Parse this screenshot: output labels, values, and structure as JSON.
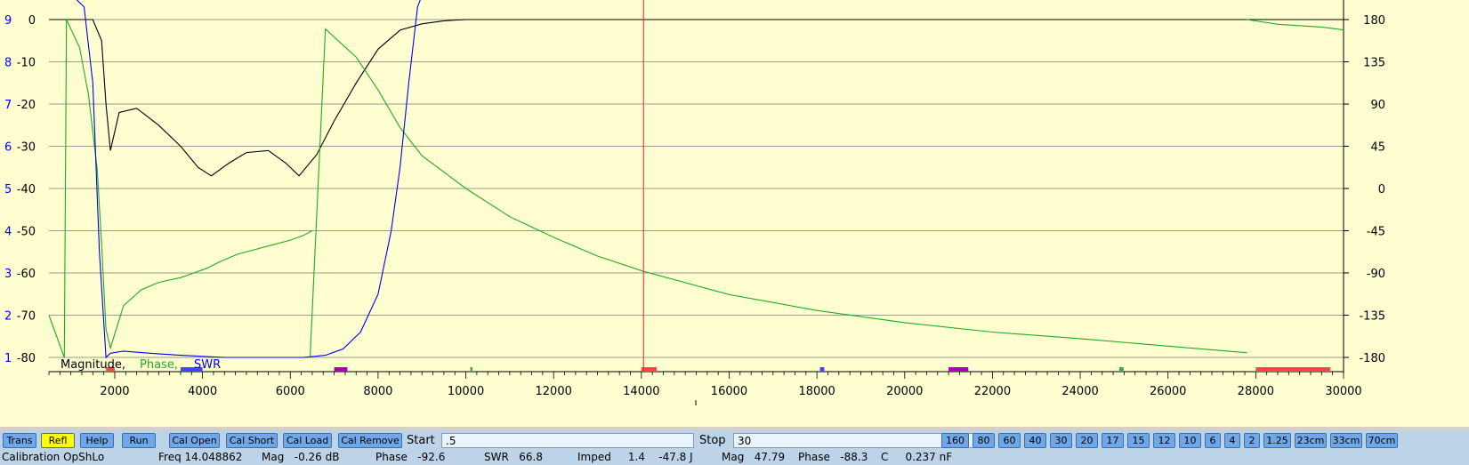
{
  "chart_data": {
    "type": "line",
    "xlim": [
      500,
      30000
    ],
    "x_ticks": [
      2000,
      4000,
      6000,
      8000,
      10000,
      12000,
      14000,
      16000,
      18000,
      20000,
      22000,
      24000,
      26000,
      28000,
      30000
    ],
    "y_left_mag": {
      "range": [
        -80,
        0
      ],
      "ticks": [
        "0",
        "-10",
        "-20",
        "-30",
        "-40",
        "-50",
        "-60",
        "-70",
        "-80"
      ]
    },
    "y_left_swr": {
      "range": [
        1,
        9
      ],
      "ticks": [
        "9",
        "8",
        "7",
        "6",
        "5",
        "4",
        "3",
        "2",
        "1"
      ]
    },
    "y_right_phase": {
      "range": [
        -180,
        180
      ],
      "ticks": [
        "180",
        "135",
        "90",
        "45",
        "0",
        "-45",
        "-90",
        "-135",
        "-180"
      ]
    },
    "grid": true,
    "legend": {
      "position": "bottom-left",
      "entries": [
        "Magnitude,",
        "Phase,",
        "SWR"
      ]
    },
    "marker_freq": 14048.862,
    "series": [
      {
        "name": "Magnitude",
        "color": "#000000",
        "axis": "mag",
        "x": [
          500,
          1000,
          1500,
          1700,
          1800,
          1900,
          2100,
          2500,
          3000,
          3500,
          3900,
          4200,
          4600,
          5000,
          5500,
          5900,
          6200,
          6600,
          7000,
          7500,
          8000,
          8500,
          9000,
          9500,
          10000,
          12000,
          16000,
          20000,
          24000,
          28000,
          30000
        ],
        "y": [
          0,
          0,
          0,
          -5,
          -20,
          -31,
          -22,
          -21,
          -25,
          -30,
          -35,
          -37,
          -34,
          -31.5,
          -31,
          -34,
          -37,
          -32,
          -24,
          -15,
          -7,
          -2.5,
          -1,
          -0.3,
          0,
          0,
          0,
          0,
          0,
          0,
          0
        ]
      },
      {
        "name": "Phase",
        "color": "#22aa22",
        "axis": "phase",
        "x": [
          500,
          850,
          900,
          1200,
          1400,
          1600,
          1700,
          1800,
          1900,
          2200,
          2600,
          3000,
          3500,
          3800,
          4100,
          4400,
          4800,
          5200,
          5600,
          6000,
          6300,
          6500
        ],
        "y": [
          -135,
          -180,
          180,
          150,
          100,
          20,
          -60,
          -150,
          -170,
          -125,
          -108,
          -100,
          -95,
          -90,
          -85,
          -78,
          -70,
          -65,
          -60,
          -55,
          -50,
          -45
        ]
      },
      {
        "name": "Phase2",
        "color": "#22aa22",
        "axis": "phase",
        "x": [
          6450,
          6800,
          7500,
          8000,
          8500,
          9000,
          10000,
          11000,
          12000,
          13000,
          14048.862,
          16000,
          18000,
          20000,
          22000,
          24000,
          26000,
          27800
        ],
        "y": [
          -180,
          170,
          140,
          105,
          65,
          35,
          0,
          -30,
          -52,
          -72,
          -88.3,
          -113,
          -130,
          -143,
          -153,
          -160,
          -168,
          -175
        ]
      },
      {
        "name": "Phase3",
        "color": "#22aa22",
        "axis": "phase",
        "x": [
          27800,
          28500,
          29500,
          30000
        ],
        "y": [
          180,
          175,
          172,
          169
        ]
      },
      {
        "name": "SWR",
        "color": "#0000ee",
        "axis": "swr",
        "x": [
          1100,
          1300,
          1500,
          1650,
          1800,
          1900,
          2200,
          2800,
          3500,
          4500,
          5500,
          6300,
          6800,
          7200,
          7600,
          8000,
          8300,
          8500,
          8700,
          8900,
          9000
        ],
        "y": [
          9.5,
          9.3,
          7.5,
          3.5,
          1.0,
          1.1,
          1.15,
          1.1,
          1.05,
          1.0,
          1.0,
          1.0,
          1.05,
          1.2,
          1.6,
          2.5,
          4.0,
          5.5,
          7.5,
          9.3,
          9.6
        ]
      }
    ]
  },
  "controls": {
    "buttons": [
      "Trans",
      "Refl",
      "Help",
      "Run",
      "Cal Open",
      "Cal Short",
      "Cal Load",
      "Cal Remove"
    ],
    "active_button": "Refl",
    "start_label": "Start",
    "start_value": ".5",
    "stop_label": "Stop",
    "stop_value": "30",
    "bands": [
      "160",
      "80",
      "60",
      "40",
      "30",
      "20",
      "17",
      "15",
      "12",
      "10",
      "6",
      "4",
      "2",
      "1.25",
      "23cm",
      "33cm",
      "70cm"
    ]
  },
  "status": {
    "calibration": "Calibration OpShLo",
    "freq": "Freq 14.048862",
    "mag": "Mag   -0.26 dB",
    "phase": "Phase   -92.6",
    "swr": "SWR   66.8",
    "imped": "Imped     1.4    -47.8 J",
    "mag2": "Mag   47.79",
    "phase2": "Phase   -88.3",
    "c": "C     0.237 nF"
  },
  "colors": {
    "background": "#fefed0",
    "grid": "#7a7a7a",
    "marker": "#ff2020",
    "swr_axis": "#0000ee"
  }
}
